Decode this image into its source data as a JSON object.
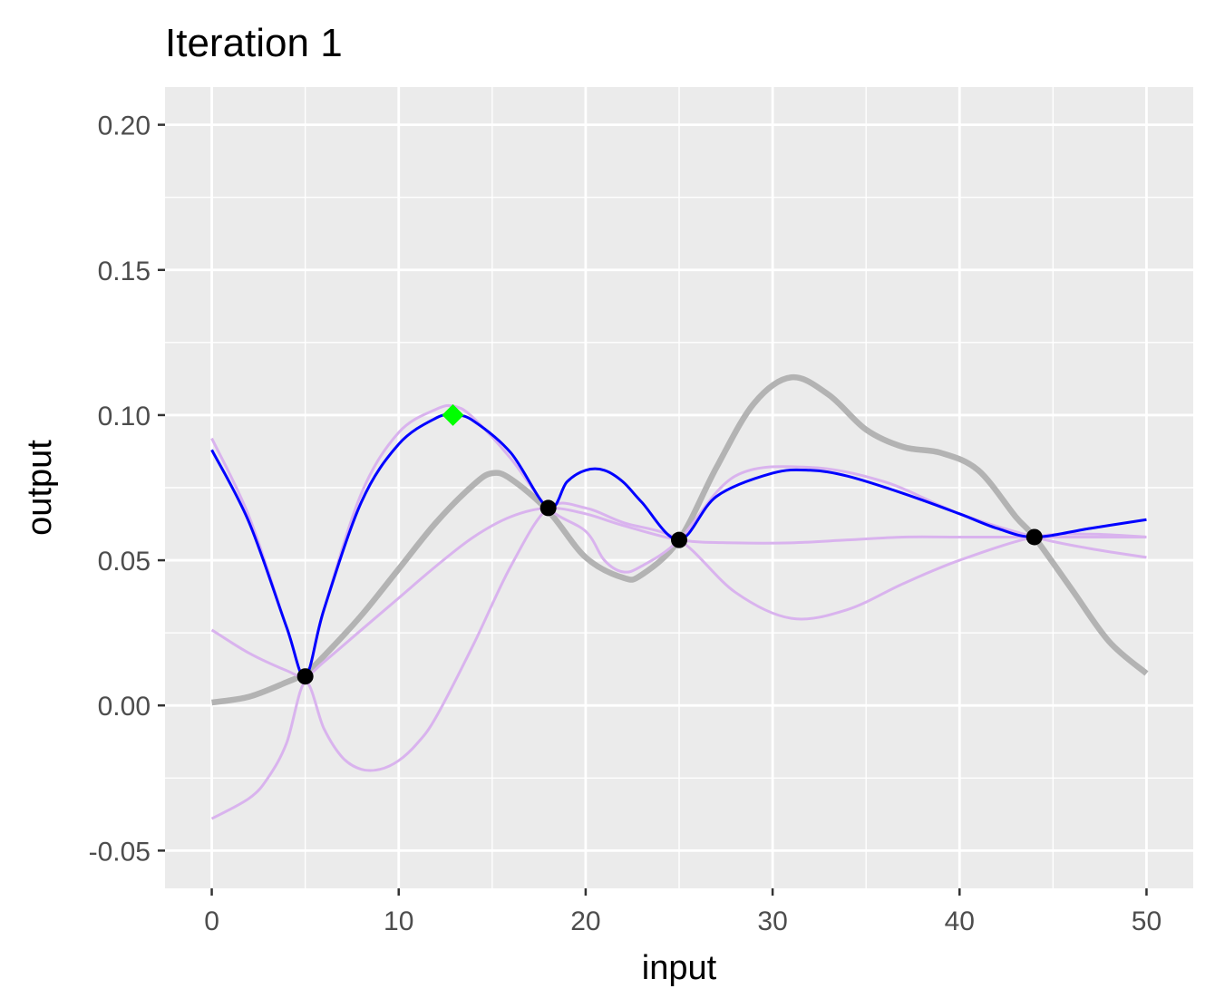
{
  "chart_data": {
    "type": "line",
    "title": "Iteration 1",
    "xlabel": "input",
    "ylabel": "output",
    "xlim": [
      -2.5,
      52.5
    ],
    "ylim": [
      -0.063,
      0.213
    ],
    "x_ticks": [
      0,
      10,
      20,
      30,
      40,
      50
    ],
    "x_tick_labels": [
      "0",
      "10",
      "20",
      "30",
      "40",
      "50"
    ],
    "y_ticks": [
      -0.05,
      0.0,
      0.05,
      0.1,
      0.15,
      0.2
    ],
    "y_tick_labels": [
      "-0.05",
      "0.00",
      "0.05",
      "0.10",
      "0.15",
      "0.20"
    ],
    "x_minor": [
      5,
      15,
      25,
      35,
      45
    ],
    "y_minor": [
      -0.025,
      0.025,
      0.075,
      0.125,
      0.175
    ],
    "grid": true,
    "colors": {
      "panel_background": "#ebebeb",
      "grid": "#ffffff",
      "true_function": "#b3b3b3",
      "posterior_samples": "#d9b3ee",
      "posterior_mean": "#0000ff",
      "observations": "#000000",
      "next_point": "#00ff00"
    },
    "series": [
      {
        "role": "true-function",
        "x": [
          0,
          2,
          4,
          5,
          6,
          8,
          10,
          12,
          14,
          15,
          16,
          18,
          20,
          22,
          23,
          25,
          27,
          29,
          31,
          33,
          35,
          37,
          39,
          41,
          43,
          44,
          46,
          48,
          50
        ],
        "y": [
          0.001,
          0.003,
          0.008,
          0.011,
          0.017,
          0.031,
          0.047,
          0.063,
          0.076,
          0.08,
          0.078,
          0.067,
          0.051,
          0.044,
          0.045,
          0.057,
          0.082,
          0.104,
          0.113,
          0.107,
          0.095,
          0.089,
          0.087,
          0.081,
          0.065,
          0.058,
          0.04,
          0.022,
          0.011
        ]
      },
      {
        "role": "posterior-sample",
        "x": [
          0,
          2,
          4,
          5,
          6,
          8,
          10,
          12,
          13,
          14,
          16,
          18,
          20,
          21,
          22,
          23,
          25,
          28,
          32,
          36,
          40,
          44,
          47,
          50
        ],
        "y": [
          0.092,
          0.065,
          0.027,
          0.01,
          0.033,
          0.073,
          0.094,
          0.102,
          0.103,
          0.099,
          0.085,
          0.068,
          0.06,
          0.05,
          0.046,
          0.048,
          0.057,
          0.079,
          0.082,
          0.077,
          0.066,
          0.058,
          0.054,
          0.051
        ]
      },
      {
        "role": "posterior-sample",
        "x": [
          0,
          2,
          4,
          5,
          6,
          8,
          10,
          12,
          14,
          16,
          18,
          20,
          22,
          25,
          28,
          31,
          34,
          37,
          40,
          44,
          47,
          50
        ],
        "y": [
          0.026,
          0.018,
          0.012,
          0.01,
          0.015,
          0.026,
          0.037,
          0.048,
          0.058,
          0.065,
          0.068,
          0.066,
          0.062,
          0.057,
          0.056,
          0.056,
          0.057,
          0.058,
          0.058,
          0.058,
          0.058,
          0.058
        ]
      },
      {
        "role": "posterior-sample",
        "x": [
          0,
          2,
          3,
          4,
          5,
          6,
          7,
          8,
          9,
          10,
          11,
          12,
          14,
          16,
          18,
          20,
          22,
          25,
          28,
          31,
          34,
          37,
          40,
          44,
          47,
          50
        ],
        "y": [
          -0.039,
          -0.032,
          -0.025,
          -0.013,
          0.008,
          -0.008,
          -0.018,
          -0.022,
          -0.022,
          -0.019,
          -0.013,
          -0.004,
          0.021,
          0.048,
          0.068,
          0.068,
          0.063,
          0.057,
          0.039,
          0.03,
          0.033,
          0.042,
          0.05,
          0.058,
          0.059,
          0.058
        ]
      },
      {
        "role": "posterior-mean",
        "x": [
          0,
          2,
          4,
          5,
          6,
          8,
          10,
          12,
          13,
          14,
          16,
          18,
          19,
          20,
          21,
          22,
          23,
          25,
          27,
          30,
          32,
          34,
          37,
          40,
          42,
          44,
          47,
          50
        ],
        "y": [
          0.088,
          0.063,
          0.027,
          0.01,
          0.033,
          0.07,
          0.09,
          0.099,
          0.1,
          0.098,
          0.087,
          0.068,
          0.077,
          0.081,
          0.081,
          0.077,
          0.07,
          0.057,
          0.072,
          0.08,
          0.081,
          0.079,
          0.073,
          0.066,
          0.061,
          0.058,
          0.061,
          0.064
        ]
      }
    ],
    "observations": {
      "x": [
        5,
        18,
        25,
        44
      ],
      "y": [
        0.01,
        0.068,
        0.057,
        0.058
      ]
    },
    "next_point": {
      "x": 12.9,
      "y": 0.1
    }
  }
}
